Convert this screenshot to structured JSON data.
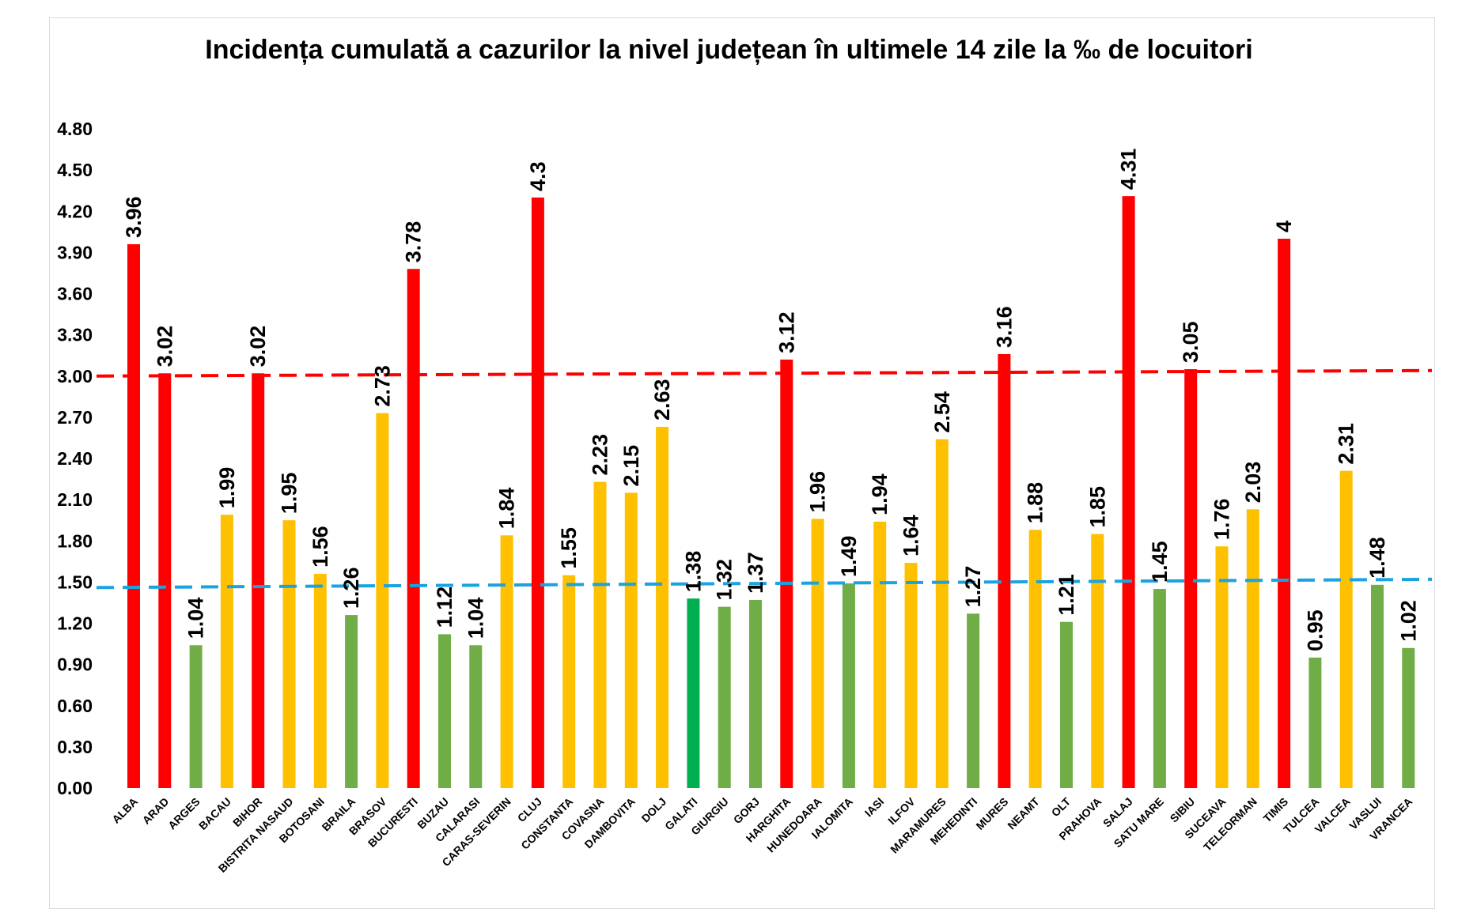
{
  "chart_data": {
    "type": "bar",
    "title": "Incidența cumulată a cazurilor la nivel județean în ultimele 14 zile la ‰ de locuitori",
    "ylim": [
      0,
      4.8
    ],
    "yticks": [
      "0.00",
      "0.30",
      "0.60",
      "0.90",
      "1.20",
      "1.50",
      "1.80",
      "2.10",
      "2.40",
      "2.70",
      "3.00",
      "3.30",
      "3.60",
      "3.90",
      "4.20",
      "4.50",
      "4.80"
    ],
    "grid": false,
    "categories": [
      "ALBA",
      "ARAD",
      "ARGES",
      "BACAU",
      "BIHOR",
      "BISTRITA NASAUD",
      "BOTOSANI",
      "BRAILA",
      "BRASOV",
      "BUCURESTI",
      "BUZAU",
      "CALARASI",
      "CARAS-SEVERIN",
      "CLUJ",
      "CONSTANTA",
      "COVASNA",
      "DAMBOVITA",
      "DOLJ",
      "GALATI",
      "GIURGIU",
      "GORJ",
      "HARGHITA",
      "HUNEDOARA",
      "IALOMITA",
      "IASI",
      "ILFOV",
      "MARAMURES",
      "MEHEDINTI",
      "MURES",
      "NEAMT",
      "OLT",
      "PRAHOVA",
      "SALAJ",
      "SATU MARE",
      "SIBIU",
      "SUCEAVA",
      "TELEORMAN",
      "TIMIS",
      "TULCEA",
      "VALCEA",
      "VASLUI",
      "VRANCEA"
    ],
    "values": [
      3.96,
      3.02,
      1.04,
      1.99,
      3.02,
      1.95,
      1.56,
      1.26,
      2.73,
      3.78,
      1.12,
      1.04,
      1.84,
      4.3,
      1.55,
      2.23,
      2.15,
      2.63,
      1.38,
      1.32,
      1.37,
      3.12,
      1.96,
      1.49,
      1.94,
      1.64,
      2.54,
      1.27,
      3.16,
      1.88,
      1.21,
      1.85,
      4.31,
      1.45,
      3.05,
      1.76,
      2.03,
      4,
      0.95,
      2.31,
      1.48,
      1.02
    ],
    "labels": [
      "3.96",
      "3.02",
      "1.04",
      "1.99",
      "3.02",
      "1.95",
      "1.56",
      "1.26",
      "2.73",
      "3.78",
      "1.12",
      "1.04",
      "1.84",
      "4.3",
      "1.55",
      "2.23",
      "2.15",
      "2.63",
      "1.38",
      "1.32",
      "1.37",
      "3.12",
      "1.96",
      "1.49",
      "1.94",
      "1.64",
      "2.54",
      "1.27",
      "3.16",
      "1.88",
      "1.21",
      "1.85",
      "4.31",
      "1.45",
      "3.05",
      "1.76",
      "2.03",
      "4",
      "0.95",
      "2.31",
      "1.48",
      "1.02"
    ],
    "bar_colors": {
      "red": "#ff0000",
      "yellow": "#ffc000",
      "green": "#70ad47",
      "dark_green": "#00b050"
    },
    "dark_green_category": "GALATI",
    "reference_lines": [
      {
        "color": "#ff0000",
        "start": 3.0,
        "end": 3.04,
        "style": "dashed"
      },
      {
        "color": "#1aa3e0",
        "start": 1.46,
        "end": 1.52,
        "style": "dashed"
      }
    ]
  }
}
